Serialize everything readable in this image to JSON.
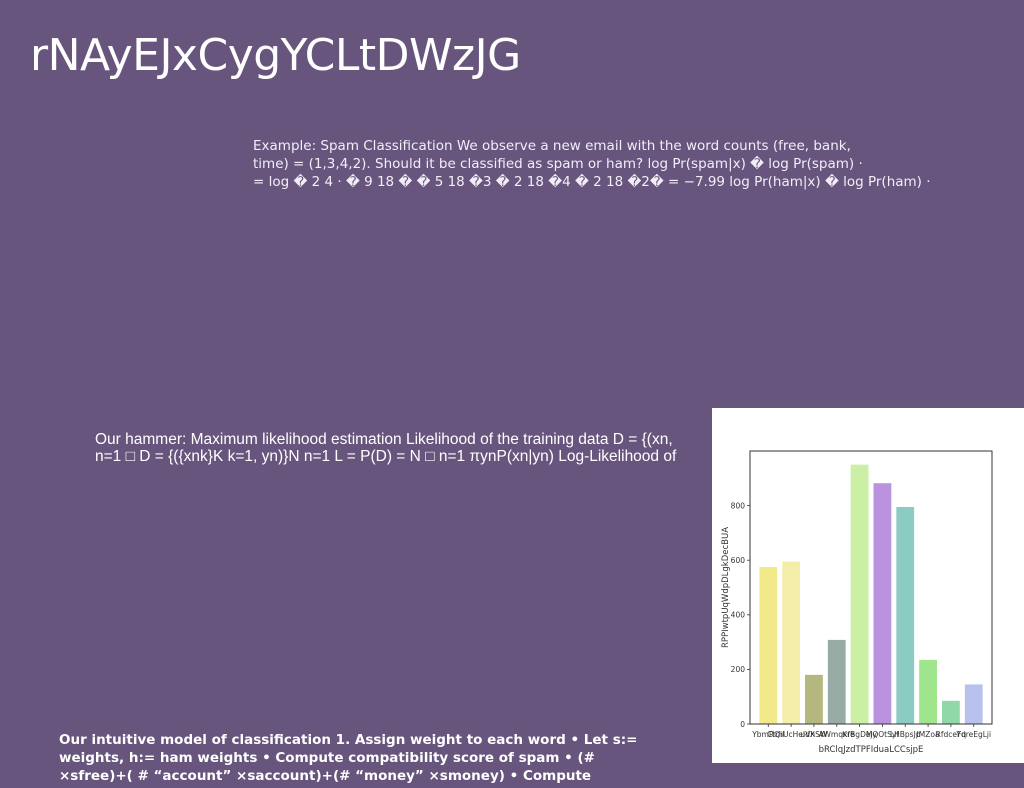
{
  "title": "rNAyEJxCygYCLtDWzJG",
  "block1": {
    "lines": [
      "Example: Spam Classification We observe a new email with the word counts (free, bank,",
      "time) = (1,3,4,2). Should it be classified as spam or ham? log Pr(spam|x) � log Pr(spam) ·",
      "= log � 2 4 · � 9 18 � � 5 18 �3 � 2 18 �4 � 2 18 �2� = −7.99 log Pr(ham|x) � log Pr(ham) ·"
    ]
  },
  "block2": {
    "lines": [
      "Our hammer: Maximum likelihood estimation Likelihood of the training data D = {(xn,",
      "n=1 □ D = {({xnk}K k=1, yn)}N n=1 L = P(D) = N □ n=1 πynP(xn|yn) Log-Likelihood of"
    ]
  },
  "block3": {
    "lines": [
      "Our intuitive model of classification 1. Assign weight to each word • Let s:=",
      "weights, h:= ham weights • Compute compatibility score of spam • (#",
      "×sfree)+( # “account” ×saccount)+(# “money” ×smoney) • Compute"
    ]
  },
  "chart_data": {
    "type": "bar",
    "categories": [
      "YbmRQiI",
      "CtrhUcHeIdX",
      "uVhSW",
      "AWmqxfe",
      "KrBgDejy",
      "MQOtSyf",
      "LHBpsJp",
      "IMZoa",
      "RfdceFq",
      "YdreEgLji"
    ],
    "values": [
      575,
      595,
      180,
      308,
      950,
      882,
      795,
      235,
      85,
      145
    ],
    "colors": [
      "#f2e98a",
      "#f5eeaa",
      "#b4b87e",
      "#98aca6",
      "#ccefa6",
      "#bb92dd",
      "#8ccbc4",
      "#9ee58c",
      "#8fd9a8",
      "#b9c1ee"
    ],
    "title": "",
    "xlabel": "bRClqJzdTPFIduaLCCsjpE",
    "ylabel": "RPPIwtpUqWdpDLgkDecBUA",
    "ylim": [
      0,
      1000
    ],
    "yticks": [
      0,
      200,
      400,
      600,
      800
    ],
    "grid": false
  }
}
